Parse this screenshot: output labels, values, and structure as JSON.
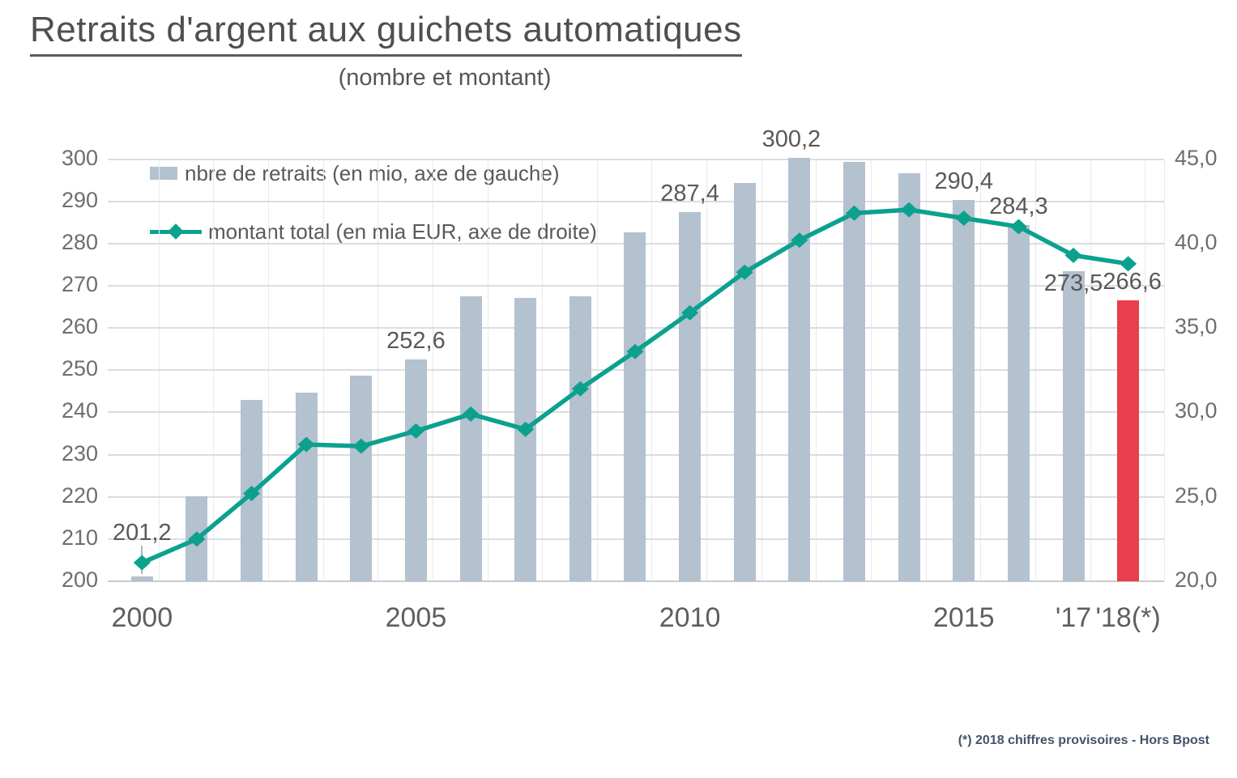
{
  "header": {
    "title": "Retraits d'argent aux guichets automatiques",
    "subtitle": "(nombre et montant)"
  },
  "legend": {
    "bar_label": "nbre de retraits (en mio, axe de gauche)",
    "line_label": "montant total (en mia EUR, axe de droite)"
  },
  "footnote": {
    "text": "(*) 2018 chiffres provisoires - Hors Bpost"
  },
  "colors": {
    "bar": "#b4c1cf",
    "bar_highlight": "#ea3d4d",
    "line": "#0ca18f",
    "grid": "#dadde0",
    "grid_vertical": "#e8eaed",
    "axis_bottom": "#c7ccd1",
    "axis_text": "#6e6e6e",
    "label_text": "#595959"
  },
  "chart_data": {
    "type": "bar",
    "subtype": "bar+line combo, dual axis",
    "title": "Retraits d'argent aux guichets automatiques (nombre et montant)",
    "categories": [
      "2000",
      "2001",
      "2002",
      "2003",
      "2004",
      "2005",
      "2006",
      "2007",
      "2008",
      "2009",
      "2010",
      "2011",
      "2012",
      "2013",
      "2014",
      "2015",
      "2016",
      "2017",
      "2018"
    ],
    "series": [
      {
        "name": "nbre de retraits (en mio, axe de gauche)",
        "type": "bar",
        "axis": "left",
        "values": [
          201.2,
          220.1,
          243.0,
          244.6,
          248.8,
          252.6,
          267.5,
          267.1,
          267.5,
          282.6,
          287.4,
          294.4,
          300.2,
          299.4,
          296.7,
          290.4,
          284.3,
          273.5,
          266.6
        ],
        "highlight_last_color": "#ea3d4d"
      },
      {
        "name": "montant total (en mia EUR, axe de droite)",
        "type": "line",
        "axis": "right",
        "values": [
          21.1,
          22.5,
          25.2,
          28.1,
          28.0,
          28.9,
          29.9,
          29.0,
          31.4,
          33.6,
          35.9,
          38.3,
          40.2,
          41.8,
          42.0,
          41.5,
          41.0,
          39.3,
          38.8
        ]
      }
    ],
    "left_axis": {
      "min": 200,
      "max": 300,
      "step": 10
    },
    "right_axis": {
      "min": 20,
      "max": 45,
      "step": 5,
      "decimal_comma": true
    },
    "x_ticks": [
      {
        "index": 0,
        "label": "2000"
      },
      {
        "index": 5,
        "label": "2005"
      },
      {
        "index": 10,
        "label": "2010"
      },
      {
        "index": 15,
        "label": "2015"
      },
      {
        "index": 17,
        "label": "'17"
      },
      {
        "index": 18,
        "label": "'18(*)"
      }
    ],
    "data_labels": [
      {
        "index": 0,
        "text": "201,2"
      },
      {
        "index": 5,
        "text": "252,6"
      },
      {
        "index": 10,
        "text": "287,4"
      },
      {
        "index": 12,
        "text": "300,2"
      },
      {
        "index": 15,
        "text": "290,4"
      },
      {
        "index": 16,
        "text": "284,3"
      },
      {
        "index": 17,
        "text": "273,5"
      },
      {
        "index": 18,
        "text": "266,6"
      }
    ],
    "grid": "horizontal major + faint vertical category lines",
    "legend_position": "top-left inside plot"
  }
}
